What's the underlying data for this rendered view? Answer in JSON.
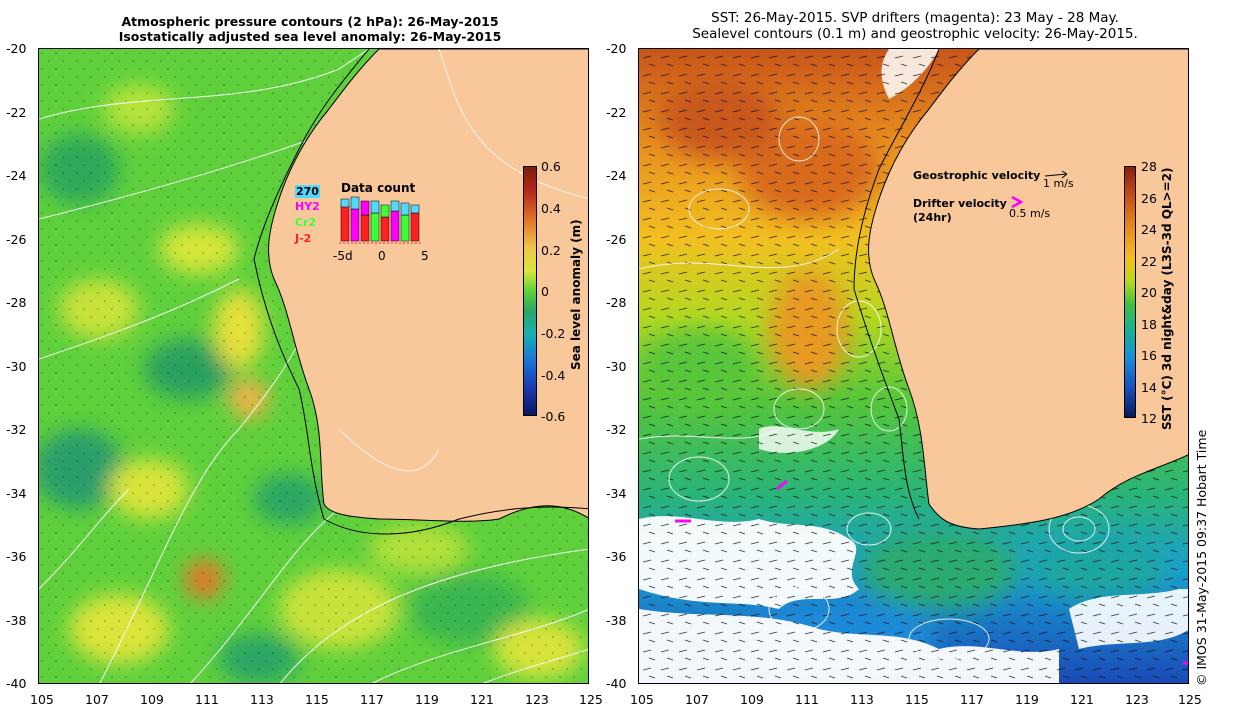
{
  "left_panel": {
    "title_line1": "Atmospheric pressure contours (2 hPa): 26-May-2015",
    "title_line2": "Isostatically adjusted sea level anomaly: 26-May-2015",
    "colorbar": {
      "label": "Sea level anomaly (m)",
      "ticks": [
        "0.6",
        "0.4",
        "0.2",
        "0",
        "-0.2",
        "-0.4",
        "-0.6"
      ]
    },
    "inset": {
      "title": "Data count",
      "satellites": [
        "270",
        "HY2",
        "Cr2",
        "J-2"
      ],
      "x_ticks": [
        "-5d",
        "0",
        "5"
      ]
    }
  },
  "right_panel": {
    "title_line1": "SST: 26-May-2015. SVP drifters (magenta): 23 May - 28 May.",
    "title_line2": "Sealevel contours (0.1 m) and geostrophic velocity: 26-May-2015.",
    "legend": {
      "geo_label": "Geostrophic velocity",
      "geo_scale": "1 m/s",
      "drifter_label": "Drifter velocity",
      "drifter_sub": "(24hr)",
      "drifter_scale": "0.5 m/s"
    },
    "colorbar": {
      "label": "SST (°C) 3d night&day (L3S-3d QL>=2)",
      "ticks": [
        "28",
        "26",
        "24",
        "22",
        "20",
        "18",
        "16",
        "14",
        "12"
      ]
    }
  },
  "axes": {
    "y_ticks": [
      "-20",
      "-22",
      "-24",
      "-26",
      "-28",
      "-30",
      "-32",
      "-34",
      "-36",
      "-38",
      "-40"
    ],
    "x_ticks": [
      "105",
      "107",
      "109",
      "111",
      "113",
      "115",
      "117",
      "119",
      "121",
      "123",
      "125"
    ]
  },
  "credit": "© IMOS 31-May-2015 09:37 Hobart Time",
  "colors": {
    "land": "#f9c89a",
    "sla_background": "#5ed23a",
    "magenta": "#ff00ff"
  }
}
